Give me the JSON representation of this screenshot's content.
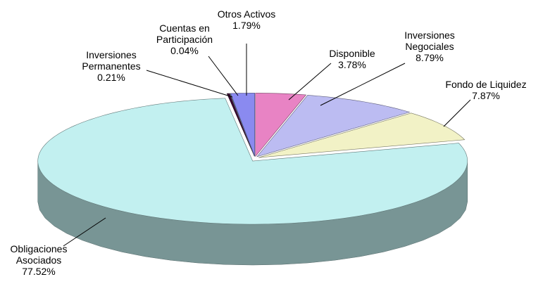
{
  "chart_data": {
    "type": "pie",
    "three_d": true,
    "categories": [
      "Disponible",
      "Inversiones Negociales",
      "Fondo de Liquidez",
      "Obligaciones Asociados",
      "Inversiones Permanentes",
      "Cuentas en Participación",
      "Otros Activos"
    ],
    "values": [
      3.78,
      8.79,
      7.87,
      77.52,
      0.21,
      0.04,
      1.79
    ],
    "value_labels": [
      "3.78%",
      "8.79%",
      "7.87%",
      "77.52%",
      "0.21%",
      "0.04%",
      "1.79%"
    ],
    "colors": [
      "#e883c4",
      "#bcbcf2",
      "#f2f2c6",
      "#c2f0f0",
      "#3a0832",
      "#b4e8e8",
      "#8a8af0"
    ]
  }
}
